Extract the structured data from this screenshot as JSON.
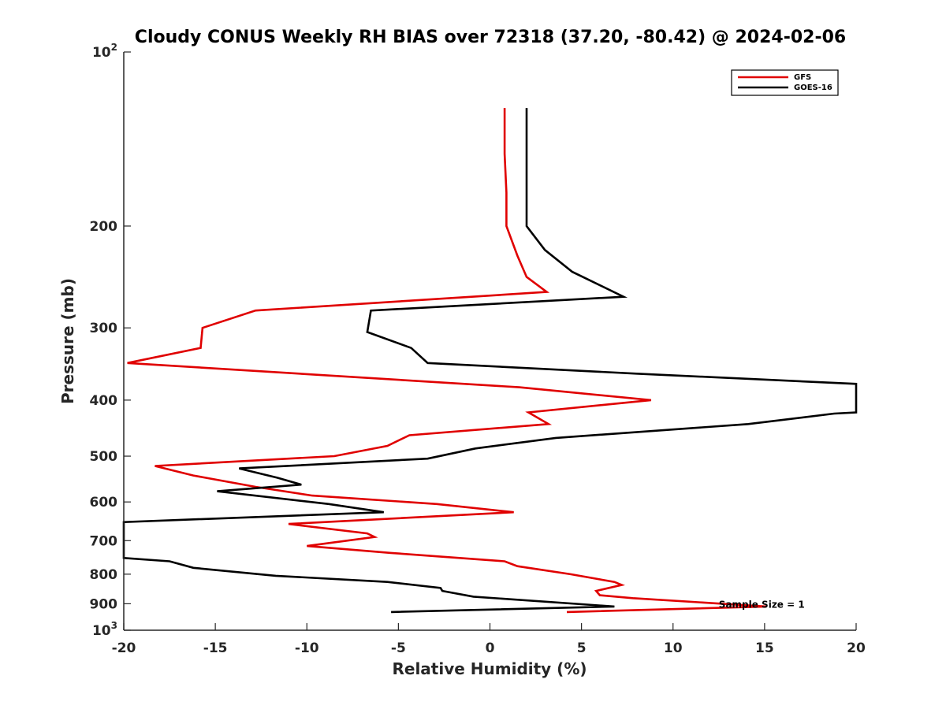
{
  "chart_data": {
    "type": "line",
    "title": "Cloudy CONUS Weekly RH BIAS over 72318 (37.20, -80.42) @ 2024-02-06",
    "xlabel": "Relative Humidity (%)",
    "ylabel": "Pressure (mb)",
    "xlim": [
      -20,
      20
    ],
    "ylim": [
      100,
      1000
    ],
    "yscale": "log",
    "y_reversed": true,
    "xticks": [
      -20,
      -15,
      -10,
      -5,
      0,
      5,
      10,
      15,
      20
    ],
    "xtick_labels": [
      "-20",
      "-15",
      "-10",
      "-5",
      "0",
      "5",
      "10",
      "15",
      "20"
    ],
    "yticks": [
      {
        "value": 100,
        "base": "10",
        "exp": "2"
      },
      {
        "value": 200,
        "label": "200"
      },
      {
        "value": 300,
        "label": "300"
      },
      {
        "value": 400,
        "label": "400"
      },
      {
        "value": 500,
        "label": "500"
      },
      {
        "value": 600,
        "label": "600"
      },
      {
        "value": 700,
        "label": "700"
      },
      {
        "value": 800,
        "label": "800"
      },
      {
        "value": 900,
        "label": "900"
      },
      {
        "value": 1000,
        "base": "10",
        "exp": "3"
      }
    ],
    "legend_position": "top-right",
    "annotation": {
      "text": "Sample Size = 1",
      "x": 12.5,
      "y": 900
    },
    "series": [
      {
        "name": "GFS",
        "color": "#e00000",
        "points": [
          [
            0.8,
            125
          ],
          [
            0.8,
            150
          ],
          [
            0.9,
            175
          ],
          [
            0.9,
            200
          ],
          [
            1.5,
            225
          ],
          [
            2.0,
            245
          ],
          [
            3.1,
            260
          ],
          [
            -12.8,
            280
          ],
          [
            -15.7,
            300
          ],
          [
            -15.8,
            325
          ],
          [
            -19.8,
            345
          ],
          [
            1.6,
            380
          ],
          [
            8.8,
            400
          ],
          [
            2.1,
            420
          ],
          [
            3.2,
            440
          ],
          [
            -4.4,
            460
          ],
          [
            -5.6,
            480
          ],
          [
            -8.5,
            500
          ],
          [
            -18.3,
            520
          ],
          [
            -16.2,
            540
          ],
          [
            -12.8,
            565
          ],
          [
            -9.7,
            585
          ],
          [
            -2.9,
            605
          ],
          [
            1.3,
            625
          ],
          [
            -11.0,
            655
          ],
          [
            -6.7,
            680
          ],
          [
            -6.3,
            690
          ],
          [
            -10.0,
            715
          ],
          [
            -5.4,
            735
          ],
          [
            0.8,
            760
          ],
          [
            1.5,
            775
          ],
          [
            4.4,
            800
          ],
          [
            6.8,
            825
          ],
          [
            7.2,
            835
          ],
          [
            5.8,
            855
          ],
          [
            6.0,
            870
          ],
          [
            7.8,
            880
          ],
          [
            15.1,
            910
          ],
          [
            4.2,
            930
          ]
        ]
      },
      {
        "name": "GOES-16",
        "color": "#000000",
        "points": [
          [
            2.0,
            125
          ],
          [
            2.0,
            150
          ],
          [
            2.0,
            175
          ],
          [
            2.0,
            200
          ],
          [
            3.0,
            220
          ],
          [
            4.5,
            240
          ],
          [
            7.3,
            265
          ],
          [
            -6.5,
            280
          ],
          [
            -6.7,
            305
          ],
          [
            -4.3,
            325
          ],
          [
            -3.4,
            345
          ],
          [
            8.0,
            360
          ],
          [
            20.0,
            375
          ],
          [
            20.0,
            420
          ],
          [
            18.8,
            422
          ],
          [
            14.1,
            440
          ],
          [
            3.6,
            465
          ],
          [
            -0.8,
            485
          ],
          [
            -3.4,
            505
          ],
          [
            -13.7,
            525
          ],
          [
            -11.6,
            545
          ],
          [
            -10.3,
            560
          ],
          [
            -14.9,
            575
          ],
          [
            -8.8,
            605
          ],
          [
            -5.8,
            625
          ],
          [
            -20.0,
            650
          ],
          [
            -20.0,
            750
          ],
          [
            -17.5,
            760
          ],
          [
            -16.2,
            780
          ],
          [
            -11.7,
            805
          ],
          [
            -5.6,
            825
          ],
          [
            -2.7,
            845
          ],
          [
            -2.6,
            855
          ],
          [
            -0.9,
            875
          ],
          [
            6.8,
            910
          ],
          [
            -5.4,
            930
          ]
        ]
      }
    ]
  }
}
